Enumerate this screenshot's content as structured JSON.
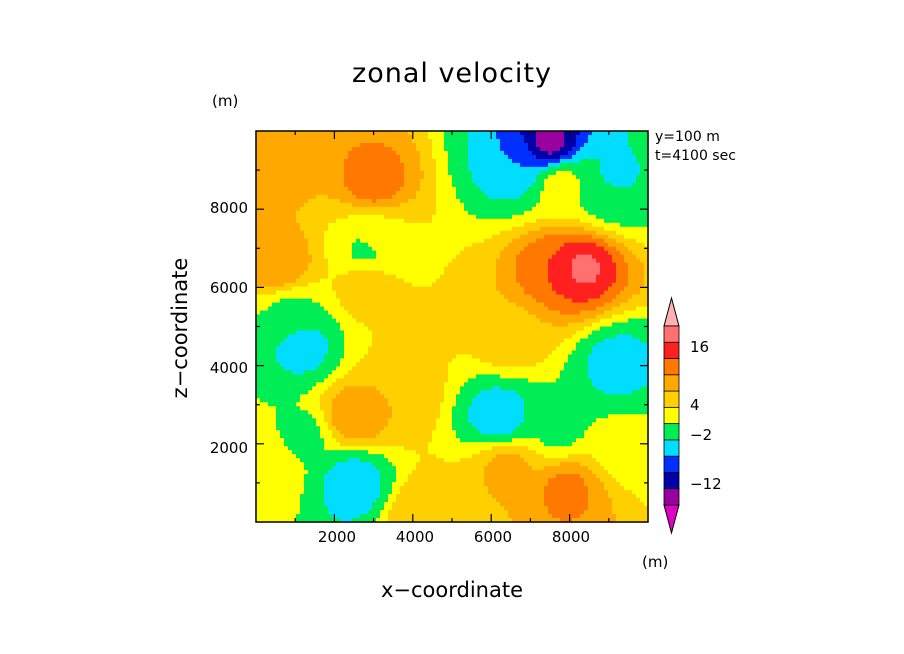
{
  "chart_data": {
    "type": "heatmap",
    "title": "zonal velocity",
    "xlabel": "x−coordinate",
    "ylabel": "z−coordinate",
    "xunit": "(m)",
    "zunit": "(m)",
    "annotations": [
      "y=100 m",
      "t=4100 sec"
    ],
    "xlim": [
      0,
      10000
    ],
    "ylim": [
      0,
      10000
    ],
    "x_ticks": [
      "2000",
      "4000",
      "6000",
      "8000"
    ],
    "y_ticks": [
      "2000",
      "4000",
      "6000",
      "8000"
    ],
    "colorbar": {
      "levels": [
        -18,
        -15,
        -12,
        -9,
        -6,
        -2,
        1,
        4,
        7,
        10,
        13,
        16,
        19
      ],
      "tick_labels": [
        "16",
        "4",
        "−2",
        "−12"
      ],
      "colors": [
        "#e000c8",
        "#9a009f",
        "#0000a8",
        "#0030ff",
        "#00ddff",
        "#00ee55",
        "#ffff00",
        "#ffd000",
        "#ffa800",
        "#ff7800",
        "#ff2020",
        "#ff7070",
        "#ffb0b0"
      ]
    },
    "features": [
      {
        "x": 7500,
        "z": 9700,
        "value": -16
      },
      {
        "x": 6600,
        "z": 9100,
        "value": -9
      },
      {
        "x": 7800,
        "z": 8600,
        "value": 0
      },
      {
        "x": 9000,
        "z": 8500,
        "value": -3
      },
      {
        "x": 9100,
        "z": 8700,
        "value": -8
      },
      {
        "x": 3000,
        "z": 8700,
        "value": 9
      },
      {
        "x": 600,
        "z": 9000,
        "value": 5
      },
      {
        "x": 600,
        "z": 6600,
        "value": 7
      },
      {
        "x": 2800,
        "z": 6000,
        "value": 3
      },
      {
        "x": 3000,
        "z": 7300,
        "value": 0
      },
      {
        "x": 2800,
        "z": 7000,
        "value": -3
      },
      {
        "x": 7600,
        "z": 6500,
        "value": 10
      },
      {
        "x": 8300,
        "z": 6500,
        "value": 14
      },
      {
        "x": 6500,
        "z": 4700,
        "value": 3
      },
      {
        "x": 1200,
        "z": 4500,
        "value": -8
      },
      {
        "x": 900,
        "z": 5300,
        "value": -3
      },
      {
        "x": 3700,
        "z": 4800,
        "value": 1
      },
      {
        "x": 9200,
        "z": 4000,
        "value": -8
      },
      {
        "x": 2500,
        "z": 2700,
        "value": 7
      },
      {
        "x": 3700,
        "z": 3300,
        "value": 4
      },
      {
        "x": 6200,
        "z": 2700,
        "value": -9
      },
      {
        "x": 7700,
        "z": 2400,
        "value": -3
      },
      {
        "x": 2500,
        "z": 1000,
        "value": -9
      },
      {
        "x": 1200,
        "z": 2200,
        "value": -3
      },
      {
        "x": 6400,
        "z": 1400,
        "value": 5
      },
      {
        "x": 7900,
        "z": 800,
        "value": 8
      },
      {
        "x": 9500,
        "z": 2000,
        "value": -1
      },
      {
        "x": 4200,
        "z": 200,
        "value": 4
      },
      {
        "x": 300,
        "z": 1400,
        "value": 1
      }
    ]
  }
}
